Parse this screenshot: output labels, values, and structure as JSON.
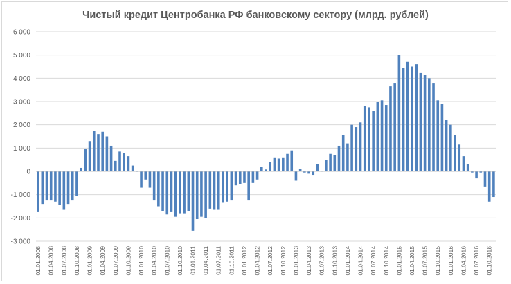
{
  "chart_data": {
    "type": "bar",
    "title": "Чистый кредит Центробанка РФ банковскому сектору (млрд. рублей)",
    "xlabel": "",
    "ylabel": "",
    "ylim": [
      -3000,
      6000
    ],
    "y_ticks": [
      -3000,
      -2000,
      -1000,
      0,
      1000,
      2000,
      3000,
      4000,
      5000,
      6000
    ],
    "y_tick_labels": [
      "-3 000",
      "-2 000",
      "-1 000",
      "0",
      "1 000",
      "2 000",
      "3 000",
      "4 000",
      "5 000",
      "6 000"
    ],
    "x_tick_labels": [
      "01.01.2008",
      "01.04.2008",
      "01.07.2008",
      "01.10.2008",
      "01.01.2009",
      "01.04.2009",
      "01.07.2009",
      "01.10.2009",
      "01.01.2010",
      "01.04.2010",
      "01.07.2010",
      "01.10.2010",
      "01.01.2011",
      "01.04.2011",
      "01.07.2011",
      "01.10.2011",
      "01.01.2012",
      "01.04.2012",
      "01.07.2012",
      "01.10.2012",
      "01.01.2013",
      "01.04.2013",
      "01.07.2013",
      "01.10.2013",
      "01.01.2014",
      "01.04.2014",
      "01.07.2014",
      "01.10.2014",
      "01.01.2015",
      "01.04.2015",
      "01.07.2015",
      "01.10.2015",
      "01.01.2016",
      "01.04.2016",
      "01.07.2016",
      "01.10.2016"
    ],
    "grid": true,
    "bar_color": "#4f81bd",
    "series": [
      {
        "name": "Чистый кредит",
        "values": [
          -1750,
          -1400,
          -1250,
          -1250,
          -1300,
          -1450,
          -1650,
          -1400,
          -1250,
          -1050,
          150,
          950,
          1300,
          1750,
          1600,
          1700,
          1500,
          1100,
          450,
          850,
          800,
          650,
          250,
          -20,
          -700,
          -350,
          -700,
          -1250,
          -1500,
          -1700,
          -1850,
          -1750,
          -1950,
          -1800,
          -1800,
          -1700,
          -2550,
          -2050,
          -1950,
          -2000,
          -1600,
          -1650,
          -1650,
          -1350,
          -1300,
          -1250,
          -600,
          -550,
          -500,
          -1250,
          -500,
          -350,
          200,
          80,
          400,
          600,
          550,
          600,
          750,
          900,
          -400,
          100,
          -50,
          -100,
          -150,
          300,
          0,
          500,
          750,
          700,
          1100,
          1550,
          1200,
          2000,
          1900,
          2100,
          2800,
          2750,
          2600,
          3000,
          3050,
          2850,
          3650,
          3800,
          5000,
          4450,
          4700,
          4500,
          4600,
          4250,
          4150,
          4000,
          3800,
          3050,
          2900,
          2200,
          2000,
          1550,
          1150,
          650,
          300,
          -50,
          -300,
          -50,
          -650,
          -1300,
          -1100
        ]
      }
    ]
  }
}
